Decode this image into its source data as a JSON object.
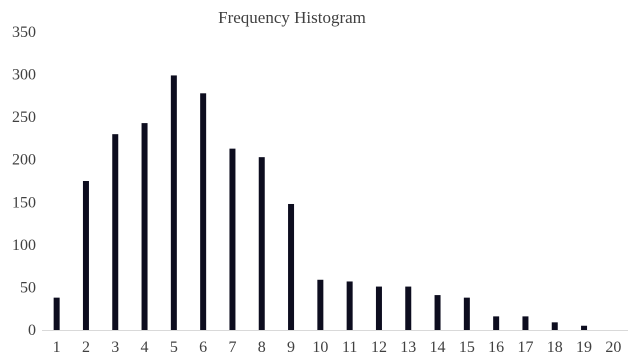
{
  "chart_data": {
    "type": "bar",
    "title": "Frequency Histogram",
    "xlabel": "",
    "ylabel": "",
    "categories": [
      "1",
      "2",
      "3",
      "4",
      "5",
      "6",
      "7",
      "8",
      "9",
      "10",
      "11",
      "12",
      "13",
      "14",
      "15",
      "16",
      "17",
      "18",
      "19",
      "20"
    ],
    "values": [
      38,
      175,
      230,
      243,
      299,
      278,
      213,
      203,
      148,
      59,
      57,
      51,
      51,
      41,
      38,
      16,
      16,
      9,
      5,
      0
    ],
    "ylim": [
      0,
      350
    ],
    "yticks": [
      "0",
      "50",
      "100",
      "150",
      "200",
      "250",
      "300",
      "350"
    ],
    "grid": false,
    "legend": "none",
    "colors": {
      "bar": "#0d0d1f",
      "axis": "#d9d9d9",
      "text": "#404040"
    }
  }
}
